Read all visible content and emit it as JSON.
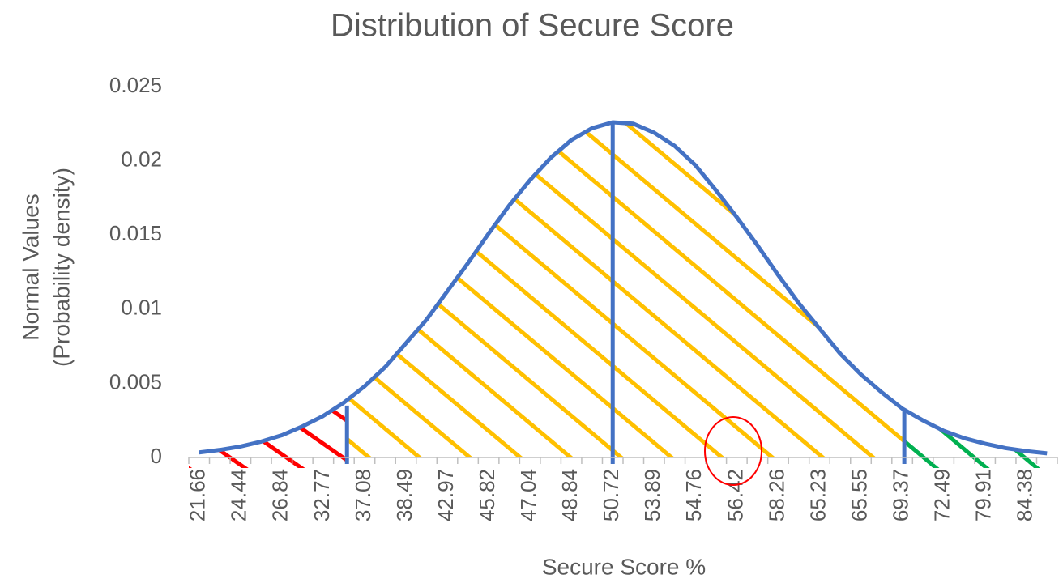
{
  "chart_data": {
    "type": "line",
    "title": "Distribution of Secure Score",
    "xlabel": "Secure Score %",
    "ylabel": [
      "Normal Values",
      "(Probability density)"
    ],
    "categories": [
      "21.66",
      null,
      "24.44",
      null,
      "26.84",
      null,
      "32.77",
      null,
      "37.08",
      null,
      "38.49",
      null,
      "42.97",
      null,
      "45.82",
      null,
      "47.04",
      null,
      "48.84",
      null,
      "50.72",
      null,
      "53.89",
      null,
      "54.76",
      null,
      "56.42",
      null,
      "58.26",
      null,
      "65.23",
      null,
      "65.55",
      null,
      "69.37",
      null,
      "72.49",
      null,
      "79.91",
      null,
      "84.38",
      null
    ],
    "series": [
      {
        "color": "#4472c4",
        "values": [
          0.00034,
          0.00051,
          0.00074,
          0.00107,
          0.0015,
          0.0021,
          0.0028,
          0.0037,
          0.0048,
          0.0061,
          0.0077,
          0.0093,
          0.0112,
          0.0131,
          0.0151,
          0.017,
          0.0187,
          0.0202,
          0.0214,
          0.0222,
          0.0226,
          0.0225,
          0.0219,
          0.021,
          0.0197,
          0.018,
          0.0162,
          0.0143,
          0.0123,
          0.0104,
          0.0087,
          0.007,
          0.0056,
          0.0044,
          0.0033,
          0.0025,
          0.0018,
          0.0013,
          0.00093,
          0.00063,
          0.00043,
          0.00028
        ]
      }
    ],
    "ylim": [
      0,
      0.025
    ],
    "yticks": [
      0,
      0.005,
      0.01,
      0.015,
      0.02,
      0.025
    ],
    "grid": false
  }
}
